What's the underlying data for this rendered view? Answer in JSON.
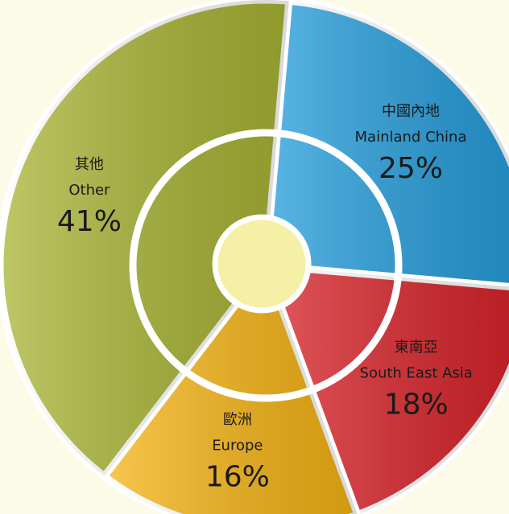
{
  "chart_data": {
    "type": "pie",
    "categories": [
      "Mainland China",
      "South East Asia",
      "Europe",
      "Other"
    ],
    "labels_zh": [
      "中國內地",
      "東南亞",
      "歐洲",
      "其他"
    ],
    "values": [
      25,
      18,
      16,
      41
    ],
    "value_labels": [
      "25%",
      "18%",
      "16%",
      "41%"
    ],
    "colors": [
      "#249ddc",
      "#d92228",
      "#f7b514",
      "#a9b534"
    ]
  }
}
